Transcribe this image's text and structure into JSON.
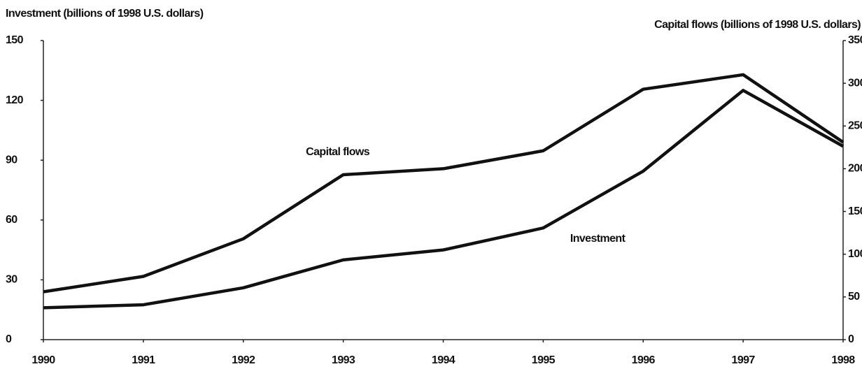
{
  "chart_data": {
    "type": "line",
    "y_label": "Investment (billions of 1998 U.S. dollars)",
    "y2_label": "Capital flows (billions of 1998 U.S. dollars)",
    "x": [
      1990,
      1991,
      1992,
      1993,
      1994,
      1995,
      1996,
      1997,
      1998
    ],
    "xlim": [
      1990,
      1998
    ],
    "xticks": [
      1990,
      1991,
      1992,
      1993,
      1994,
      1995,
      1996,
      1997,
      1998
    ],
    "ylim": [
      0,
      150
    ],
    "yticks": [
      0,
      30,
      60,
      90,
      120,
      150
    ],
    "y2lim": [
      0,
      350
    ],
    "y2ticks": [
      0,
      50,
      100,
      150,
      200,
      250,
      300,
      350
    ],
    "grid": false,
    "series": [
      {
        "name": "Capital flows",
        "color": "#111111",
        "axis": "y2",
        "values": [
          56,
          74,
          118,
          193,
          200,
          221,
          293,
          310,
          231
        ]
      },
      {
        "name": "Investment",
        "color": "#111111",
        "values": [
          16,
          17.5,
          26,
          40,
          45,
          56,
          84.5,
          125,
          97
        ]
      }
    ]
  }
}
